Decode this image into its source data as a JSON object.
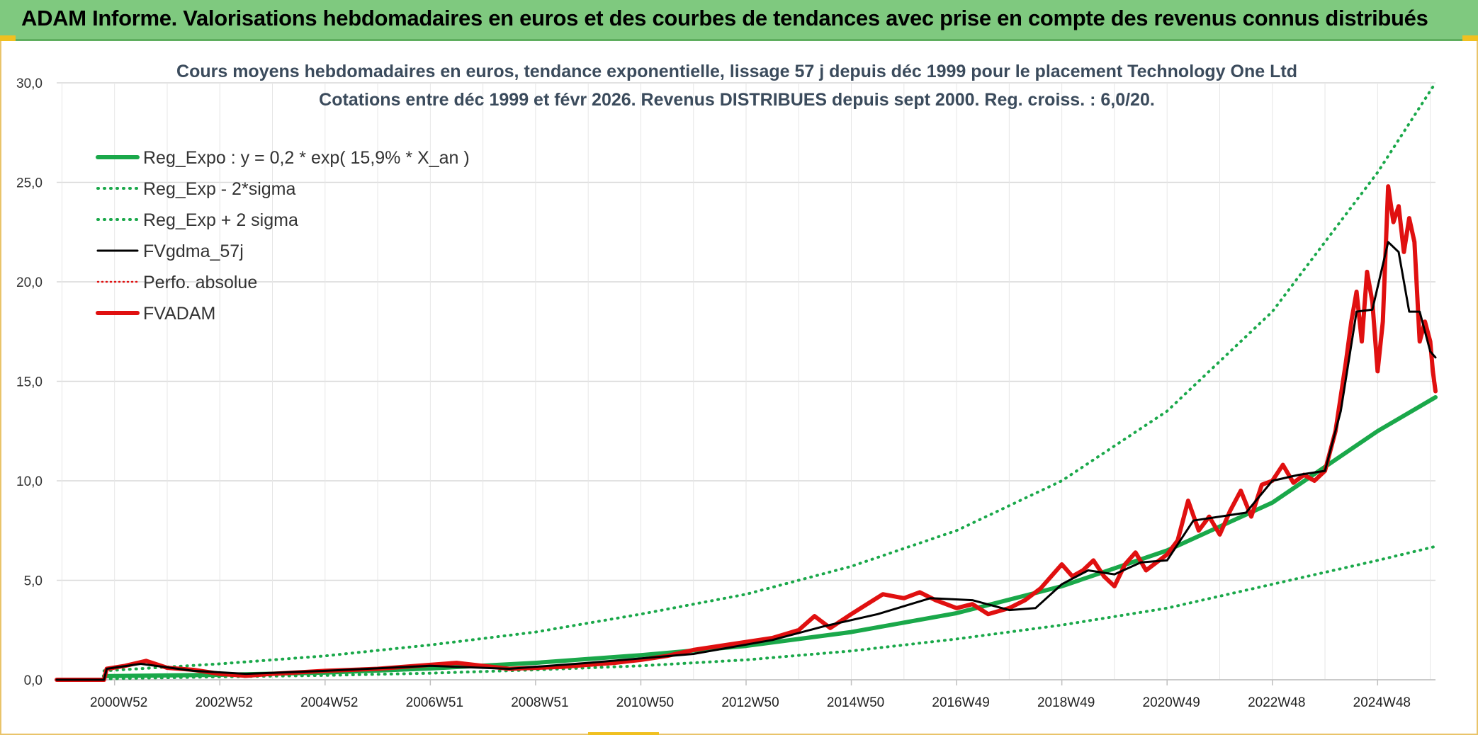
{
  "banner": {
    "title": "ADAM Informe. Valorisations hebdomadaires en euros et des courbes de tendances avec prise en compte des revenus connus distribués"
  },
  "colors": {
    "banner_bg": "#7fc97f",
    "green": "#1aa84a",
    "black": "#000000",
    "red": "#e01010",
    "grid": "#d9d9d9"
  },
  "chart_data": {
    "type": "line",
    "title": "Cours moyens hebdomadaires en euros, tendance exponentielle, lissage 57 j depuis déc 1999 pour le placement Technology One Ltd",
    "subtitle": "Cotations entre déc 1999 et févr 2026. Revenus DISTRIBUES depuis sept 2000. Reg. croiss. : 6,0/20.",
    "xlabel": "",
    "ylabel": "",
    "x_range": [
      1999.9,
      2026.1
    ],
    "ylim": [
      0,
      30
    ],
    "y_ticks": [
      "0,0",
      "5,0",
      "10,0",
      "15,0",
      "20,0",
      "25,0",
      "30,0"
    ],
    "y_tick_values": [
      0,
      5,
      10,
      15,
      20,
      25,
      30
    ],
    "x_tick_labels": [
      "2000W52",
      "2002W52",
      "2004W52",
      "2006W51",
      "2008W51",
      "2010W50",
      "2012W50",
      "2014W50",
      "2016W49",
      "2018W49",
      "2020W49",
      "2022W48",
      "2024W48"
    ],
    "x_tick_values": [
      2001.0,
      2003.0,
      2005.0,
      2007.0,
      2009.0,
      2011.0,
      2013.0,
      2015.0,
      2017.0,
      2019.0,
      2021.0,
      2023.0,
      2025.0
    ],
    "grid": true,
    "legend_position": "top-left",
    "series": [
      {
        "name": "Reg_Expo : y = 0,2 * exp( 15,9% *  X_an )",
        "style": "solid-thick",
        "color": "#1aa84a",
        "x": [
          2000.8,
          2003,
          2005,
          2007,
          2009,
          2011,
          2013,
          2015,
          2017,
          2019,
          2021,
          2023,
          2025,
          2026.1
        ],
        "y": [
          0.18,
          0.25,
          0.36,
          0.57,
          0.85,
          1.24,
          1.7,
          2.4,
          3.35,
          4.7,
          6.5,
          8.9,
          12.5,
          14.2
        ]
      },
      {
        "name": "Reg_Exp - 2*sigma",
        "style": "dotted",
        "color": "#1aa84a",
        "x": [
          2000.8,
          2003,
          2005,
          2007,
          2009,
          2011,
          2013,
          2015,
          2017,
          2019,
          2021,
          2023,
          2025,
          2026.1
        ],
        "y": [
          0.05,
          0.15,
          0.22,
          0.33,
          0.5,
          0.7,
          1.0,
          1.45,
          2.05,
          2.75,
          3.6,
          4.8,
          6.0,
          6.7
        ]
      },
      {
        "name": "Reg_Exp + 2 sigma",
        "style": "dotted",
        "color": "#1aa84a",
        "x": [
          2000.8,
          2003,
          2005,
          2007,
          2009,
          2011,
          2013,
          2015,
          2017,
          2019,
          2021,
          2023,
          2025,
          2026.1
        ],
        "y": [
          0.45,
          0.8,
          1.2,
          1.75,
          2.4,
          3.3,
          4.3,
          5.7,
          7.5,
          10.0,
          13.5,
          18.5,
          25.5,
          30.0
        ]
      },
      {
        "name": "FVgdma_57j",
        "style": "solid",
        "color": "#000000",
        "x": [
          1999.9,
          2000.8,
          2000.85,
          2001.5,
          2002.5,
          2003.5,
          2005,
          2007,
          2008.5,
          2010,
          2012,
          2013.5,
          2014.5,
          2015.5,
          2016.5,
          2017.3,
          2018,
          2018.5,
          2019,
          2019.5,
          2020,
          2020.5,
          2021,
          2021.5,
          2022,
          2022.5,
          2023,
          2023.5,
          2024,
          2024.3,
          2024.6,
          2024.9,
          2025.2,
          2025.4,
          2025.6,
          2025.8,
          2026.0,
          2026.1
        ],
        "y": [
          0,
          0,
          0.55,
          0.8,
          0.45,
          0.3,
          0.45,
          0.7,
          0.55,
          0.85,
          1.3,
          2.0,
          2.7,
          3.3,
          4.1,
          4.0,
          3.5,
          3.6,
          4.8,
          5.5,
          5.3,
          5.9,
          6.0,
          8.0,
          8.2,
          8.4,
          10.0,
          10.3,
          10.5,
          13.5,
          18.5,
          18.6,
          22.0,
          21.5,
          18.5,
          18.5,
          16.5,
          16.2
        ]
      },
      {
        "name": "Perfo. absolue",
        "style": "dotted-thin",
        "color": "#e01010",
        "x": [],
        "y": []
      },
      {
        "name": "FVADAM",
        "style": "solid-thick",
        "color": "#e01010",
        "x": [
          1999.9,
          2000.8,
          2000.85,
          2001.2,
          2001.6,
          2002,
          2002.5,
          2003,
          2003.5,
          2004,
          2005,
          2006,
          2007,
          2007.5,
          2008,
          2008.5,
          2009,
          2009.5,
          2010,
          2010.5,
          2011,
          2011.5,
          2012,
          2012.5,
          2013,
          2013.5,
          2014,
          2014.3,
          2014.6,
          2015,
          2015.3,
          2015.6,
          2016,
          2016.3,
          2016.6,
          2017,
          2017.3,
          2017.6,
          2018,
          2018.3,
          2018.6,
          2019,
          2019.2,
          2019.4,
          2019.6,
          2019.8,
          2020,
          2020.2,
          2020.4,
          2020.6,
          2020.8,
          2021,
          2021.2,
          2021.4,
          2021.6,
          2021.8,
          2022,
          2022.2,
          2022.4,
          2022.6,
          2022.8,
          2023,
          2023.2,
          2023.4,
          2023.6,
          2023.8,
          2024,
          2024.2,
          2024.4,
          2024.5,
          2024.6,
          2024.7,
          2024.8,
          2024.9,
          2025.0,
          2025.1,
          2025.2,
          2025.3,
          2025.4,
          2025.5,
          2025.6,
          2025.7,
          2025.8,
          2025.9,
          2026.0,
          2026.05,
          2026.1
        ],
        "y": [
          0,
          0,
          0.55,
          0.7,
          0.95,
          0.6,
          0.5,
          0.3,
          0.2,
          0.3,
          0.45,
          0.55,
          0.75,
          0.85,
          0.7,
          0.55,
          0.6,
          0.65,
          0.75,
          0.85,
          1.0,
          1.2,
          1.5,
          1.7,
          1.9,
          2.1,
          2.5,
          3.2,
          2.6,
          3.3,
          3.8,
          4.3,
          4.1,
          4.4,
          4.0,
          3.6,
          3.8,
          3.3,
          3.6,
          4.0,
          4.6,
          5.8,
          5.2,
          5.5,
          6.0,
          5.2,
          4.7,
          5.8,
          6.4,
          5.5,
          5.9,
          6.3,
          7.0,
          9.0,
          7.5,
          8.2,
          7.3,
          8.5,
          9.5,
          8.2,
          9.8,
          10.0,
          10.8,
          9.9,
          10.3,
          10.0,
          10.5,
          12.5,
          16.0,
          18.0,
          19.5,
          17.0,
          20.5,
          19.0,
          15.5,
          18.0,
          24.8,
          23.0,
          23.8,
          21.5,
          23.2,
          22.0,
          17.0,
          18.0,
          17.0,
          15.5,
          14.5
        ]
      }
    ]
  }
}
